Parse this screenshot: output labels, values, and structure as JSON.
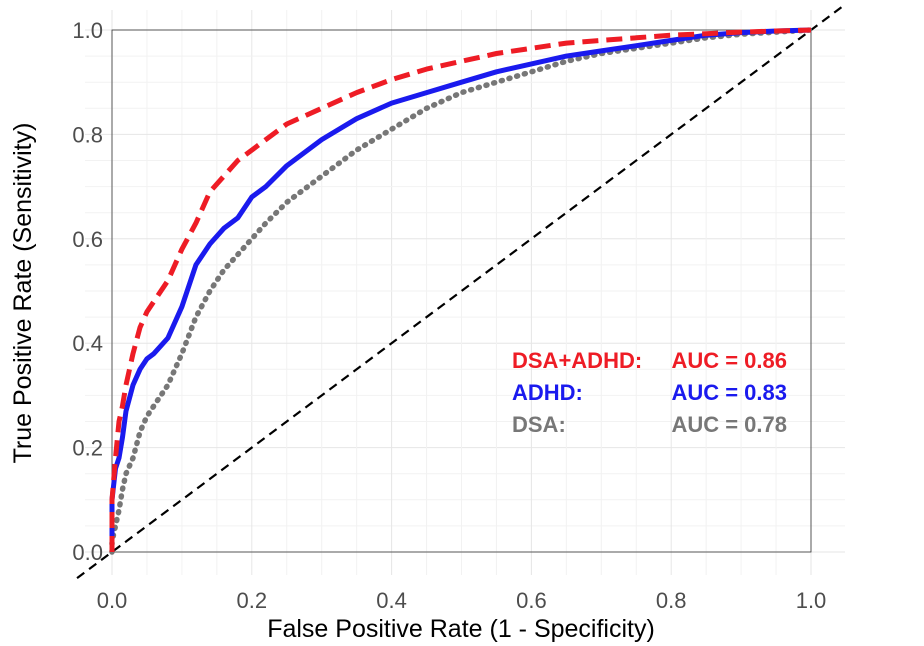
{
  "chart_data": {
    "type": "line",
    "xlabel": "False Positive Rate (1 - Specificity)",
    "ylabel": "True Positive Rate (Sensitivity)",
    "xlim": [
      0,
      1
    ],
    "ylim": [
      0,
      1
    ],
    "x_ticks": [
      "0.0",
      "0.2",
      "0.4",
      "0.6",
      "0.8",
      "1.0"
    ],
    "y_ticks": [
      "0.0",
      "0.2",
      "0.4",
      "0.6",
      "0.8",
      "1.0"
    ],
    "grid": true,
    "legend_position": "bottom-right (inside plot)",
    "reference_line": {
      "style": "dashed",
      "color": "#000000",
      "x": [
        -0.05,
        1.05
      ],
      "y": [
        -0.05,
        1.05
      ]
    },
    "series": [
      {
        "name": "DSA+ADHD",
        "auc_label": "AUC = 0.86",
        "color": "#ee1c25",
        "line_style": "dashed",
        "x": [
          0,
          0,
          0.005,
          0.01,
          0.015,
          0.02,
          0.03,
          0.04,
          0.05,
          0.06,
          0.08,
          0.1,
          0.12,
          0.14,
          0.16,
          0.18,
          0.2,
          0.22,
          0.25,
          0.3,
          0.35,
          0.4,
          0.45,
          0.5,
          0.55,
          0.6,
          0.65,
          0.7,
          0.75,
          0.8,
          0.85,
          0.9,
          0.95,
          1.0
        ],
        "y": [
          0,
          0.1,
          0.18,
          0.25,
          0.28,
          0.32,
          0.38,
          0.43,
          0.46,
          0.48,
          0.52,
          0.58,
          0.63,
          0.69,
          0.72,
          0.75,
          0.77,
          0.79,
          0.82,
          0.85,
          0.88,
          0.905,
          0.925,
          0.94,
          0.955,
          0.965,
          0.975,
          0.98,
          0.985,
          0.99,
          0.993,
          0.996,
          0.998,
          1.0
        ]
      },
      {
        "name": "ADHD",
        "auc_label": "AUC = 0.83",
        "color": "#1a1aee",
        "line_style": "solid",
        "x": [
          0,
          0,
          0.005,
          0.01,
          0.015,
          0.02,
          0.03,
          0.04,
          0.05,
          0.06,
          0.08,
          0.1,
          0.12,
          0.14,
          0.16,
          0.18,
          0.2,
          0.22,
          0.25,
          0.3,
          0.35,
          0.4,
          0.45,
          0.5,
          0.55,
          0.6,
          0.65,
          0.7,
          0.75,
          0.8,
          0.85,
          0.9,
          0.95,
          1.0
        ],
        "y": [
          0,
          0.1,
          0.16,
          0.18,
          0.22,
          0.27,
          0.32,
          0.35,
          0.37,
          0.38,
          0.41,
          0.47,
          0.55,
          0.59,
          0.62,
          0.64,
          0.68,
          0.7,
          0.74,
          0.79,
          0.83,
          0.86,
          0.88,
          0.9,
          0.92,
          0.935,
          0.95,
          0.96,
          0.97,
          0.98,
          0.99,
          0.995,
          0.998,
          1.0
        ]
      },
      {
        "name": "DSA",
        "auc_label": "AUC = 0.78",
        "color": "#777777",
        "line_style": "dotted",
        "x": [
          0,
          0,
          0.005,
          0.01,
          0.015,
          0.02,
          0.03,
          0.04,
          0.05,
          0.06,
          0.08,
          0.1,
          0.12,
          0.14,
          0.16,
          0.18,
          0.2,
          0.22,
          0.25,
          0.3,
          0.35,
          0.4,
          0.45,
          0.5,
          0.55,
          0.6,
          0.65,
          0.7,
          0.75,
          0.8,
          0.85,
          0.9,
          0.95,
          1.0
        ],
        "y": [
          0,
          0.02,
          0.05,
          0.08,
          0.12,
          0.15,
          0.18,
          0.23,
          0.26,
          0.28,
          0.32,
          0.38,
          0.45,
          0.5,
          0.54,
          0.57,
          0.6,
          0.63,
          0.67,
          0.72,
          0.77,
          0.81,
          0.85,
          0.88,
          0.9,
          0.92,
          0.94,
          0.955,
          0.965,
          0.975,
          0.985,
          0.992,
          0.996,
          1.0
        ]
      }
    ]
  }
}
